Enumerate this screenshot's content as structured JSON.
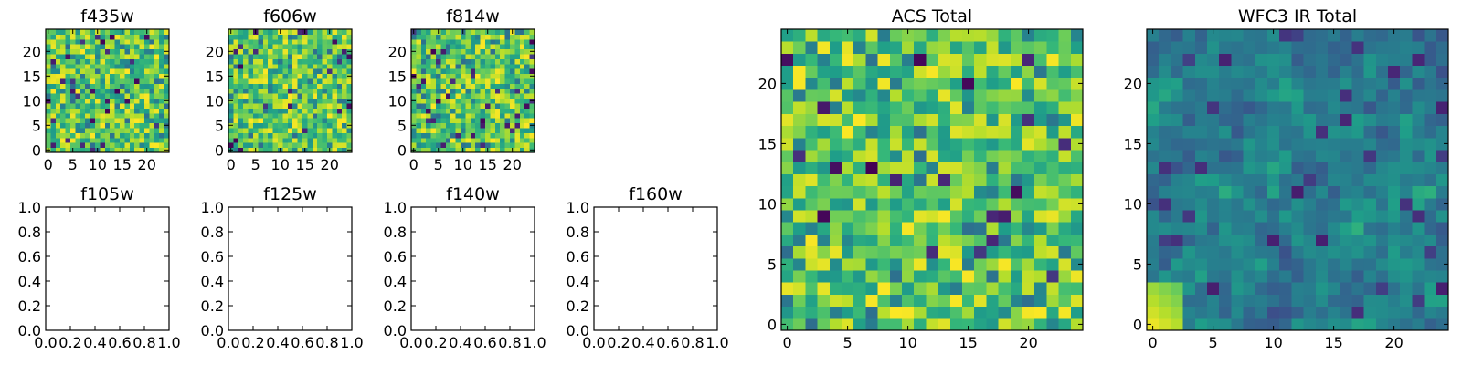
{
  "chart_data": [
    {
      "type": "heatmap",
      "title": "f435w",
      "xticks": [
        "0",
        "5",
        "10",
        "15",
        "20"
      ],
      "yticks": [
        "0",
        "5",
        "10",
        "15",
        "20"
      ],
      "grid_size": 25,
      "colormap": "viridis",
      "texture": "noisy-bright"
    },
    {
      "type": "heatmap",
      "title": "f606w",
      "xticks": [
        "0",
        "5",
        "10",
        "15",
        "20"
      ],
      "yticks": [
        "0",
        "5",
        "10",
        "15",
        "20"
      ],
      "grid_size": 25,
      "colormap": "viridis",
      "texture": "noisy-bright"
    },
    {
      "type": "heatmap",
      "title": "f814w",
      "xticks": [
        "0",
        "5",
        "10",
        "15",
        "20"
      ],
      "yticks": [
        "0",
        "5",
        "10",
        "15",
        "20"
      ],
      "grid_size": 25,
      "colormap": "viridis",
      "texture": "noisy-bright"
    },
    {
      "type": "empty",
      "title": "f105w",
      "xticks": [
        "0.0",
        "0.2",
        "0.4",
        "0.6",
        "0.8",
        "1.0"
      ],
      "yticks": [
        "0.0",
        "0.2",
        "0.4",
        "0.6",
        "0.8",
        "1.0"
      ]
    },
    {
      "type": "empty",
      "title": "f125w",
      "xticks": [
        "0.0",
        "0.2",
        "0.4",
        "0.6",
        "0.8",
        "1.0"
      ],
      "yticks": [
        "0.0",
        "0.2",
        "0.4",
        "0.6",
        "0.8",
        "1.0"
      ]
    },
    {
      "type": "empty",
      "title": "f140w",
      "xticks": [
        "0.0",
        "0.2",
        "0.4",
        "0.6",
        "0.8",
        "1.0"
      ],
      "yticks": [
        "0.0",
        "0.2",
        "0.4",
        "0.6",
        "0.8",
        "1.0"
      ]
    },
    {
      "type": "empty",
      "title": "f160w",
      "xticks": [
        "0.0",
        "0.2",
        "0.4",
        "0.6",
        "0.8",
        "1.0"
      ],
      "yticks": [
        "0.0",
        "0.2",
        "0.4",
        "0.6",
        "0.8",
        "1.0"
      ]
    },
    {
      "type": "heatmap",
      "title": "ACS Total",
      "xticks": [
        "0",
        "5",
        "10",
        "15",
        "20"
      ],
      "yticks": [
        "0",
        "5",
        "10",
        "15",
        "20"
      ],
      "grid_size": 25,
      "colormap": "viridis",
      "texture": "noisy-bright"
    },
    {
      "type": "heatmap",
      "title": "WFC3 IR Total",
      "xticks": [
        "0",
        "5",
        "10",
        "15",
        "20"
      ],
      "yticks": [
        "0",
        "5",
        "10",
        "15",
        "20"
      ],
      "grid_size": 25,
      "colormap": "viridis",
      "texture": "smooth-dark"
    }
  ]
}
